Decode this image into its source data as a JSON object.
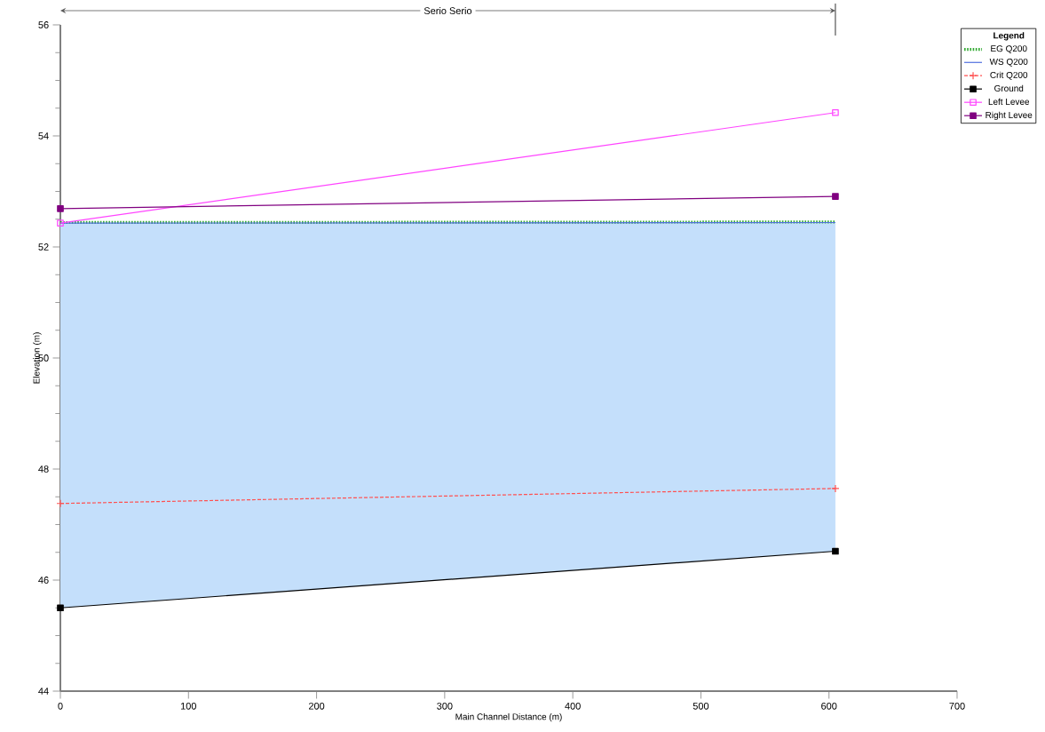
{
  "chart_data": {
    "type": "line",
    "xlabel": "Main Channel Distance (m)",
    "ylabel": "Elevation (m)",
    "legend_title": "Legend",
    "annotations": [
      "Serio Serio"
    ],
    "x": [
      0,
      605
    ],
    "series": [
      {
        "name": "EG  Q200",
        "color": "#33aa33",
        "values": [
          52.44,
          52.45
        ],
        "line_style": "dotted",
        "marker": "none"
      },
      {
        "name": "WS  Q200",
        "color": "#5070e0",
        "values": [
          52.43,
          52.44
        ],
        "type": "area",
        "line_style": "solid",
        "marker": "none"
      },
      {
        "name": "Crit  Q200",
        "color": "#ff5050",
        "values": [
          47.38,
          47.65
        ],
        "line_style": "dashed",
        "marker": "cross"
      },
      {
        "name": "Ground",
        "color": "#000000",
        "values": [
          45.5,
          46.52
        ],
        "line_style": "solid",
        "marker": "square"
      },
      {
        "name": "Left Levee",
        "color": "#ff44ff",
        "values": [
          52.43,
          54.42
        ],
        "line_style": "solid",
        "marker": "square_open"
      },
      {
        "name": "Right Levee",
        "color": "#800080",
        "values": [
          52.69,
          52.91
        ],
        "line_style": "solid",
        "marker": "square"
      }
    ],
    "xlim": [
      0,
      700
    ],
    "ylim": [
      44,
      56
    ],
    "xticks": [
      0,
      100,
      200,
      300,
      400,
      500,
      600,
      700
    ],
    "yticks": [
      44,
      46,
      48,
      50,
      52,
      54,
      56
    ],
    "grid": false,
    "legend": "top right"
  }
}
